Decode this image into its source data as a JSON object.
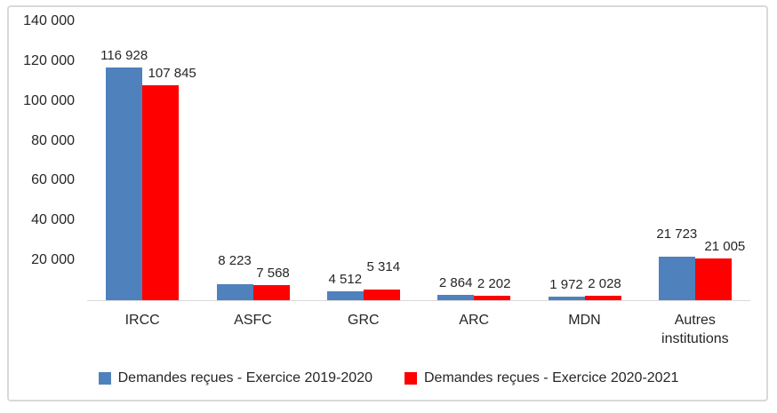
{
  "chart_data": {
    "type": "bar",
    "title": "",
    "categories": [
      "IRCC",
      "ASFC",
      "GRC",
      "ARC",
      "MDN",
      "Autres institutions"
    ],
    "series": [
      {
        "name": "Demandes reçues - Exercice 2019-2020",
        "color": "#4F81BD",
        "values": [
          116928,
          8223,
          4512,
          2864,
          1972,
          21723
        ]
      },
      {
        "name": "Demandes reçues - Exercice 2020-2021",
        "color": "#FF0000",
        "values": [
          107845,
          7568,
          5314,
          2202,
          2028,
          21005
        ]
      }
    ],
    "data_labels": [
      [
        "116 928",
        "8 223",
        "4 512",
        "2 864",
        "1 972",
        "21 723"
      ],
      [
        "107 845",
        "7 568",
        "5 314",
        "2 202",
        "2 028",
        "21 005"
      ]
    ],
    "y_axis": {
      "min": 0,
      "max": 140000,
      "step": 20000,
      "tick_labels": [
        "20 000",
        "40 000",
        "60 000",
        "80 000",
        "100 000",
        "120 000",
        "140 000"
      ]
    },
    "legend_position": "bottom",
    "grid": false,
    "number_format": "space-thousands",
    "colors": {
      "frame": "#D9D9D9",
      "axis_line": "#D9D9D9",
      "text": "#262626"
    }
  }
}
